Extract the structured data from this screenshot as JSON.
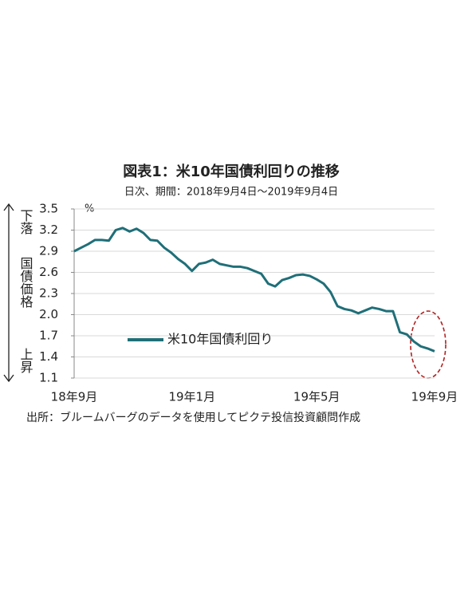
{
  "chart_data": {
    "type": "line",
    "title": "図表1：米10年国債利回りの推移",
    "subtitle": "日次、期間：2018年9月4日～2019年9月4日",
    "source": "出所：ブルームバーグのデータを使用してピクテ投信投資顧問作成",
    "y_label": "%",
    "annotations": [
      "下落",
      "国債価格",
      "上昇"
    ],
    "categories": [
      "18年9月",
      null,
      null,
      null,
      null,
      null,
      null,
      null,
      null,
      null,
      null,
      null,
      null,
      null,
      null,
      null,
      null,
      "19年1月",
      null,
      null,
      null,
      null,
      null,
      null,
      null,
      null,
      null,
      null,
      null,
      null,
      null,
      null,
      null,
      null,
      null,
      "19年5月",
      null,
      null,
      null,
      null,
      null,
      null,
      null,
      null,
      null,
      null,
      null,
      null,
      null,
      null,
      null,
      null,
      "19年9月"
    ],
    "series": [
      {
        "name": "米10年国債利回り",
        "color": "#1f6f78",
        "values": [
          2.9,
          2.95,
          3.0,
          3.06,
          3.06,
          3.05,
          3.2,
          3.23,
          3.18,
          3.22,
          3.16,
          3.06,
          3.05,
          2.95,
          2.88,
          2.79,
          2.72,
          2.62,
          2.72,
          2.74,
          2.78,
          2.72,
          2.7,
          2.68,
          2.68,
          2.66,
          2.62,
          2.58,
          2.44,
          2.4,
          2.49,
          2.52,
          2.56,
          2.57,
          2.55,
          2.5,
          2.44,
          2.32,
          2.12,
          2.08,
          2.06,
          2.02,
          2.06,
          2.1,
          2.08,
          2.05,
          2.05,
          1.75,
          1.72,
          1.62,
          1.55,
          1.52,
          1.48
        ]
      }
    ],
    "ylim": [
      1.1,
      3.5
    ],
    "yticks": [
      3.5,
      3.2,
      2.9,
      2.6,
      2.3,
      {
        "value": 2,
        "label": "2.0"
      },
      1.7,
      1.4,
      1.1
    ],
    "grid": true
  }
}
